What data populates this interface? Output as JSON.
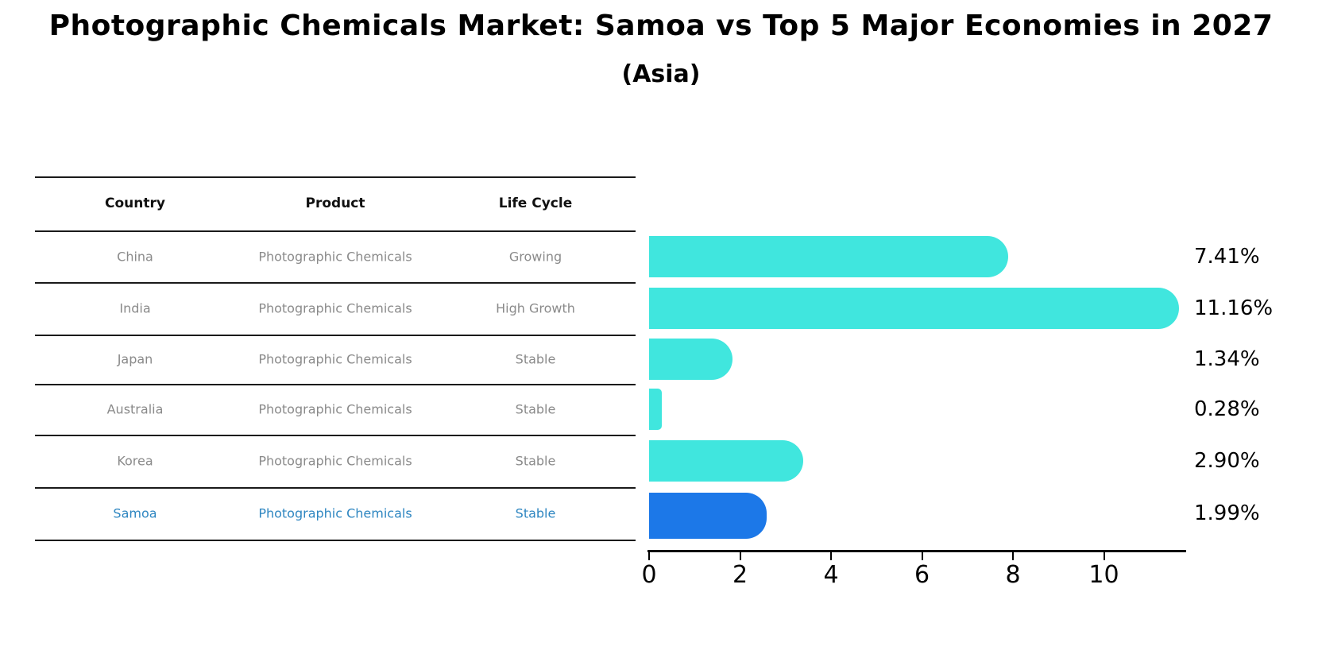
{
  "title": "Photographic Chemicals Market: Samoa vs Top 5 Major Economies in 2027",
  "subtitle": "(Asia)",
  "table": {
    "headers": [
      "Country",
      "Product",
      "Life Cycle"
    ],
    "rows": [
      {
        "country": "China",
        "product": "Photographic Chemicals",
        "life_cycle": "Growing",
        "highlight": false
      },
      {
        "country": "India",
        "product": "Photographic Chemicals",
        "life_cycle": "High Growth",
        "highlight": false
      },
      {
        "country": "Japan",
        "product": "Photographic Chemicals",
        "life_cycle": "Stable",
        "highlight": false
      },
      {
        "country": "Australia",
        "product": "Photographic Chemicals",
        "life_cycle": "Stable",
        "highlight": false
      },
      {
        "country": "Korea",
        "product": "Photographic Chemicals",
        "life_cycle": "Stable",
        "highlight": false
      },
      {
        "country": "Samoa",
        "product": "Photographic Chemicals",
        "life_cycle": "Stable",
        "highlight": true
      }
    ]
  },
  "chart_data": {
    "type": "bar",
    "orientation": "horizontal",
    "categories": [
      "China",
      "India",
      "Japan",
      "Australia",
      "Korea",
      "Samoa"
    ],
    "values": [
      7.41,
      11.16,
      1.34,
      0.28,
      2.9,
      1.99
    ],
    "value_labels": [
      "7.41%",
      "11.16%",
      "1.34%",
      "0.28%",
      "2.90%",
      "1.99%"
    ],
    "x_ticks": [
      0,
      2,
      4,
      6,
      8,
      10
    ],
    "xlim": [
      0,
      11.8
    ],
    "grid": false,
    "legend": false,
    "bar_color": "#40E6DE",
    "highlight_color": "#1C78E8",
    "highlight_index": 5
  },
  "colors": {
    "header_text": "#111111",
    "cell_text": "#8a8a8a",
    "highlight_text": "#2E86C1",
    "axis": "#000000",
    "line": "#1a1a1a"
  }
}
